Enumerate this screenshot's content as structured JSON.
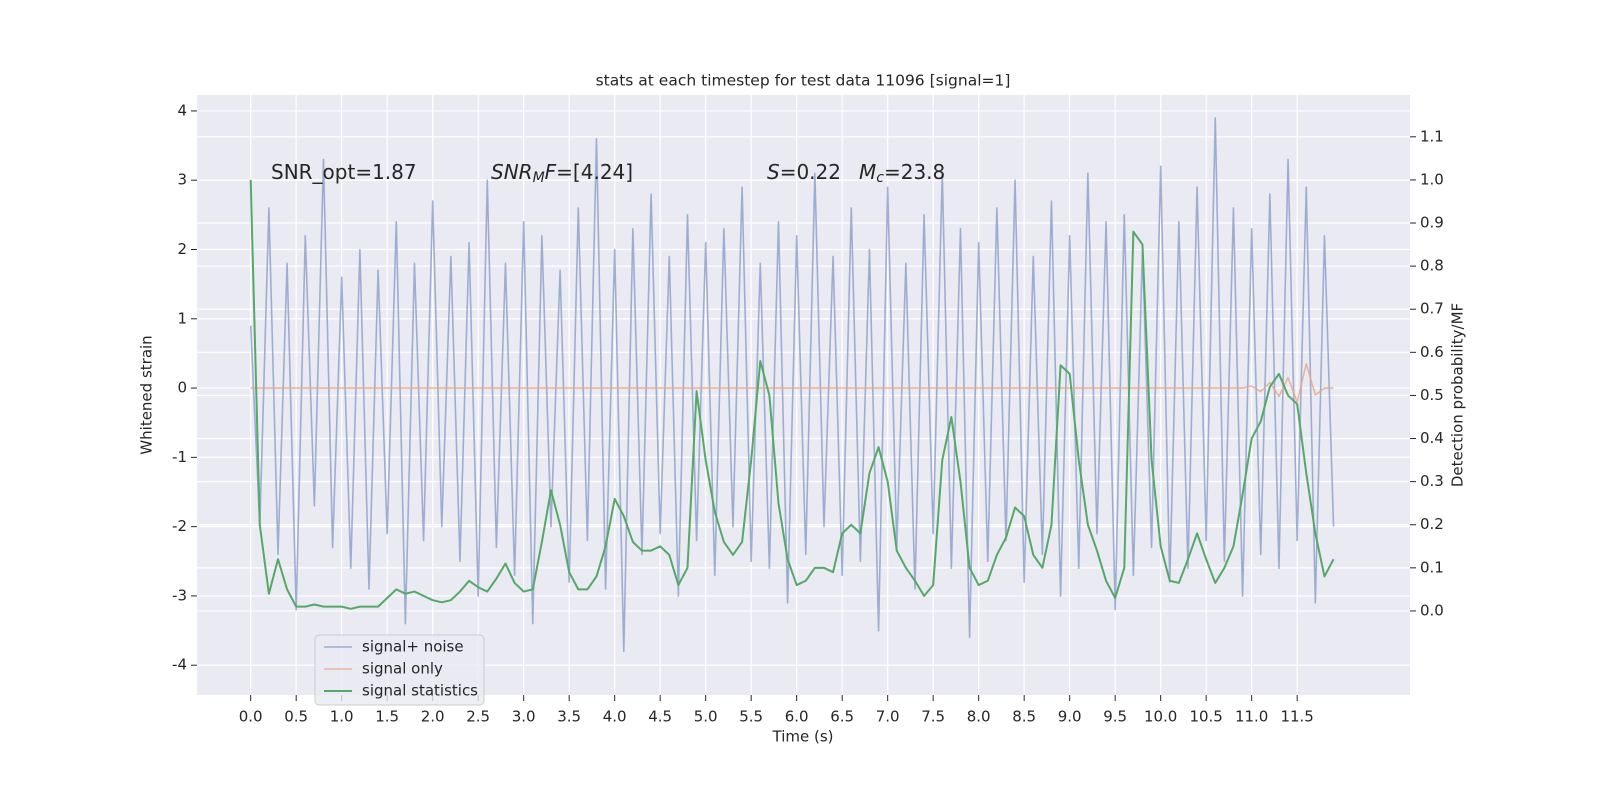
{
  "chart_data": {
    "type": "line",
    "title": "stats at each timestep for test data 11096 [signal=1]",
    "x_label": "Time (s)",
    "y_label": "Whitened strain",
    "y2_label": "Detection probability/MF",
    "annotations": [
      [
        "SNR_opt=1.87"
      ],
      [
        "SNR",
        "M",
        "F",
        "=[4.24]"
      ],
      [
        "S",
        "=0.22"
      ],
      [
        "M",
        "c",
        "=23.8"
      ]
    ],
    "x": [
      0.0,
      0.1,
      0.2,
      0.3,
      0.4,
      0.5,
      0.6,
      0.7,
      0.8,
      0.9,
      1.0,
      1.1,
      1.2,
      1.3,
      1.4,
      1.5,
      1.6,
      1.7,
      1.8,
      1.9,
      2.0,
      2.1,
      2.2,
      2.3,
      2.4,
      2.5,
      2.6,
      2.7,
      2.8,
      2.9,
      3.0,
      3.1,
      3.2,
      3.3,
      3.4,
      3.5,
      3.6,
      3.7,
      3.8,
      3.9,
      4.0,
      4.1,
      4.2,
      4.3,
      4.4,
      4.5,
      4.6,
      4.7,
      4.8,
      4.9,
      5.0,
      5.1,
      5.2,
      5.3,
      5.4,
      5.5,
      5.6,
      5.7,
      5.8,
      5.9,
      6.0,
      6.1,
      6.2,
      6.3,
      6.4,
      6.5,
      6.6,
      6.7,
      6.8,
      6.9,
      7.0,
      7.1,
      7.2,
      7.3,
      7.4,
      7.5,
      7.6,
      7.7,
      7.8,
      7.9,
      8.0,
      8.1,
      8.2,
      8.3,
      8.4,
      8.5,
      8.6,
      8.7,
      8.8,
      8.9,
      9.0,
      9.1,
      9.2,
      9.3,
      9.4,
      9.5,
      9.6,
      9.7,
      9.8,
      9.9,
      10.0,
      10.1,
      10.2,
      10.3,
      10.4,
      10.5,
      10.6,
      10.7,
      10.8,
      10.9,
      11.0,
      11.1,
      11.2,
      11.3,
      11.4,
      11.5,
      11.6,
      11.7,
      11.8,
      11.9
    ],
    "series": [
      {
        "name": "signal+ noise",
        "color": "#8fa2cc",
        "values": [
          0.9,
          -2.0,
          2.6,
          -2.4,
          1.8,
          -3.2,
          2.2,
          -1.7,
          3.3,
          -2.3,
          1.6,
          -2.6,
          2.0,
          -2.9,
          1.7,
          -2.1,
          2.4,
          -3.4,
          1.8,
          -2.2,
          2.7,
          -2.0,
          1.9,
          -2.5,
          2.1,
          -3.0,
          3.0,
          -2.3,
          1.8,
          -2.7,
          2.4,
          -3.4,
          2.2,
          -2.0,
          1.7,
          -2.8,
          2.6,
          -2.2,
          3.6,
          -2.9,
          2.0,
          -3.8,
          2.3,
          -2.4,
          2.8,
          -2.1,
          1.9,
          -3.0,
          2.5,
          -2.2,
          2.1,
          -2.7,
          2.3,
          -2.0,
          2.9,
          -2.5,
          1.8,
          -2.6,
          2.4,
          -3.1,
          2.2,
          -2.4,
          3.1,
          -2.0,
          1.9,
          -2.7,
          2.6,
          -2.5,
          2.0,
          -3.5,
          2.9,
          -2.3,
          1.8,
          -2.9,
          2.5,
          -2.1,
          3.1,
          -2.6,
          2.3,
          -3.6,
          2.1,
          -2.5,
          2.6,
          -2.2,
          3.0,
          -2.8,
          1.9,
          -2.4,
          2.7,
          -3.0,
          2.2,
          -2.6,
          3.1,
          -2.1,
          2.4,
          -3.2,
          2.5,
          -2.7,
          2.0,
          -2.3,
          3.2,
          -2.8,
          2.4,
          -2.6,
          2.9,
          -2.2,
          3.9,
          -2.5,
          2.6,
          -3.0,
          2.3,
          -2.4,
          2.8,
          -2.6,
          3.3,
          -2.2,
          2.9,
          -3.1,
          2.2,
          -2.0
        ]
      },
      {
        "name": "signal only",
        "color": "#e8a688",
        "values": [
          0,
          0,
          0,
          0,
          0,
          0,
          0,
          0,
          0,
          0,
          0,
          0,
          0,
          0,
          0,
          0,
          0,
          0,
          0,
          0,
          0,
          0,
          0,
          0,
          0,
          0,
          0,
          0,
          0,
          0,
          0,
          0,
          0,
          0,
          0,
          0,
          0,
          0,
          0,
          0,
          0,
          0,
          0,
          0,
          0,
          0,
          0,
          0,
          0,
          0,
          0,
          0,
          0,
          0,
          0,
          0,
          0,
          0,
          0,
          0,
          0,
          0,
          0,
          0,
          0,
          0,
          0,
          0,
          0,
          0,
          0,
          0,
          0,
          0,
          0,
          0,
          0,
          0,
          0,
          0,
          0,
          0,
          0,
          0,
          0,
          0,
          0,
          0,
          0,
          0,
          0,
          0,
          0,
          0,
          0,
          0,
          0,
          0,
          0,
          0,
          0,
          0,
          0,
          0,
          0,
          0,
          0,
          0,
          0,
          0,
          0.03,
          -0.05,
          0.08,
          -0.12,
          0.15,
          -0.2,
          0.35,
          -0.1,
          0,
          0
        ]
      },
      {
        "name": "signal statistics",
        "color": "#55a868",
        "axis": "y2",
        "values": [
          1.0,
          0.2,
          0.04,
          0.12,
          0.05,
          0.01,
          0.01,
          0.015,
          0.01,
          0.01,
          0.01,
          0.005,
          0.01,
          0.01,
          0.01,
          0.03,
          0.05,
          0.04,
          0.045,
          0.035,
          0.025,
          0.02,
          0.025,
          0.045,
          0.07,
          0.055,
          0.045,
          0.075,
          0.11,
          0.065,
          0.045,
          0.05,
          0.16,
          0.28,
          0.2,
          0.09,
          0.05,
          0.05,
          0.08,
          0.15,
          0.26,
          0.22,
          0.16,
          0.14,
          0.14,
          0.15,
          0.13,
          0.06,
          0.1,
          0.51,
          0.35,
          0.23,
          0.16,
          0.13,
          0.16,
          0.35,
          0.58,
          0.5,
          0.25,
          0.12,
          0.06,
          0.07,
          0.1,
          0.1,
          0.09,
          0.18,
          0.2,
          0.18,
          0.32,
          0.38,
          0.3,
          0.14,
          0.1,
          0.07,
          0.035,
          0.06,
          0.35,
          0.45,
          0.3,
          0.1,
          0.06,
          0.07,
          0.13,
          0.17,
          0.24,
          0.22,
          0.13,
          0.1,
          0.2,
          0.57,
          0.55,
          0.35,
          0.2,
          0.14,
          0.07,
          0.03,
          0.1,
          0.88,
          0.85,
          0.35,
          0.15,
          0.07,
          0.065,
          0.12,
          0.18,
          0.12,
          0.065,
          0.1,
          0.15,
          0.27,
          0.4,
          0.44,
          0.52,
          0.55,
          0.5,
          0.48,
          0.32,
          0.18,
          0.08,
          0.12
        ]
      }
    ],
    "xlim": [
      -0.59,
      12.74
    ],
    "ylim": [
      -4.43,
      4.23
    ],
    "y2lim": [
      -0.195,
      1.197
    ],
    "xticks": [
      {
        "value": 0,
        "label": "0.0"
      },
      0.5,
      {
        "value": 1,
        "label": "1.0"
      },
      1.5,
      {
        "value": 2,
        "label": "2.0"
      },
      2.5,
      {
        "value": 3,
        "label": "3.0"
      },
      3.5,
      {
        "value": 4,
        "label": "4.0"
      },
      4.5,
      {
        "value": 5,
        "label": "5.0"
      },
      5.5,
      {
        "value": 6,
        "label": "6.0"
      },
      6.5,
      {
        "value": 7,
        "label": "7.0"
      },
      7.5,
      {
        "value": 8,
        "label": "8.0"
      },
      8.5,
      {
        "value": 9,
        "label": "9.0"
      },
      9.5,
      {
        "value": 10,
        "label": "10.0"
      },
      10.5,
      {
        "value": 11,
        "label": "11.0"
      },
      11.5
    ],
    "yticks": [
      -4,
      -3,
      -2,
      -1,
      0,
      1,
      2,
      3,
      4
    ],
    "y2ticks": [
      {
        "value": 0,
        "label": "0.0"
      },
      0.1,
      0.2,
      0.3,
      0.4,
      0.5,
      0.6,
      0.7,
      0.8,
      0.9,
      {
        "value": 1,
        "label": "1.0"
      },
      1.1
    ],
    "grid": true,
    "legend": "lower left"
  }
}
